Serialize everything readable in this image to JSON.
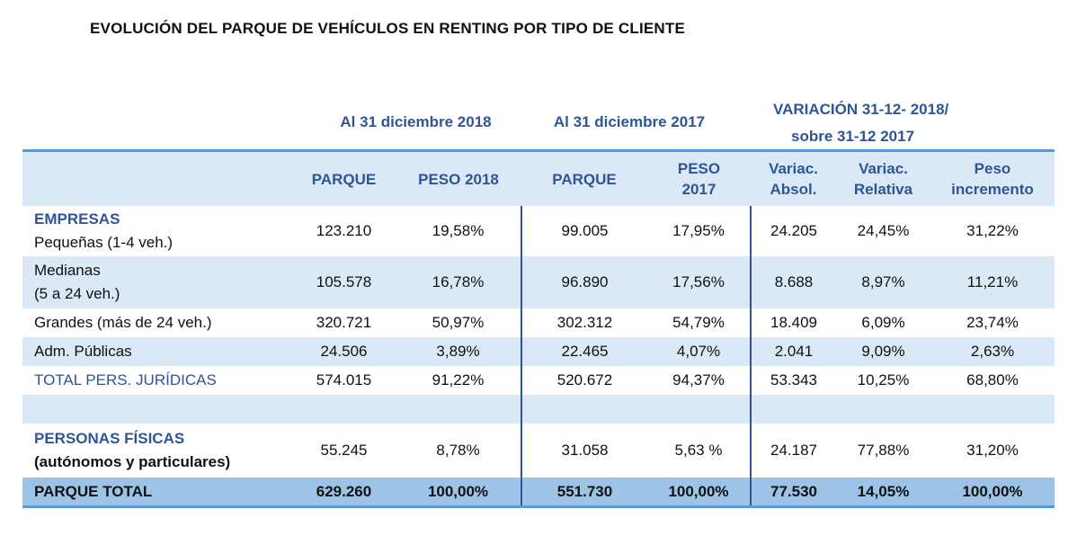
{
  "title": "EVOLUCIÓN DEL PARQUE DE VEHÍCULOS EN RENTING POR TIPO DE CLIENTE",
  "groups": {
    "g2018": "Al 31 diciembre 2018",
    "g2017": "Al 31 diciembre 2017",
    "var1": "VARIACIÓN 31-12- 2018/",
    "var2": "sobre  31-12 2017"
  },
  "headers": [
    [
      "PARQUE"
    ],
    [
      "PESO 2018"
    ],
    [
      "PARQUE"
    ],
    [
      "PESO",
      "2017"
    ],
    [
      "Variac.",
      "Absol."
    ],
    [
      "Variac.",
      "Relativa"
    ],
    [
      "Peso",
      "incremento"
    ]
  ],
  "rows": [
    {
      "section": "EMPRESAS",
      "label": "Pequeñas (1-4 veh.)",
      "values": [
        "123.210",
        "19,58%",
        "99.005",
        "17,95%",
        "24.205",
        "24,45%",
        "31,22%"
      ]
    },
    {
      "label": "Medianas",
      "label2": "(5 a 24 veh.)",
      "values": [
        "105.578",
        "16,78%",
        "96.890",
        "17,56%",
        "8.688",
        "8,97%",
        "11,21%"
      ]
    },
    {
      "label": "Grandes (más de 24 veh.)",
      "values": [
        "320.721",
        "50,97%",
        "302.312",
        "54,79%",
        "18.409",
        "6,09%",
        "23,74%"
      ]
    },
    {
      "label": "Adm. Públicas",
      "values": [
        "24.506",
        "3,89%",
        "22.465",
        "4,07%",
        "2.041",
        "9,09%",
        "2,63%"
      ]
    },
    {
      "label": "TOTAL PERS. JURÍDICAS",
      "values": [
        "574.015",
        "91,22%",
        "520.672",
        "94,37%",
        "53.343",
        "10,25%",
        "68,80%"
      ]
    },
    {
      "section": "PERSONAS FÍSICAS",
      "label": "(autónomos y particulares)",
      "values": [
        "55.245",
        "8,78%",
        "31.058",
        "5,63 %",
        "24.187",
        "77,88%",
        "31,20%"
      ]
    },
    {
      "label": "PARQUE TOTAL",
      "values": [
        "629.260",
        "100,00%",
        "551.730",
        "100,00%",
        "77.530",
        "14,05%",
        "100,00%"
      ]
    }
  ],
  "colors": {
    "accent": "#5b9bd5",
    "header_text": "#2f5597",
    "band": "#dbe8f5",
    "total_band": "#9dc3e6"
  }
}
